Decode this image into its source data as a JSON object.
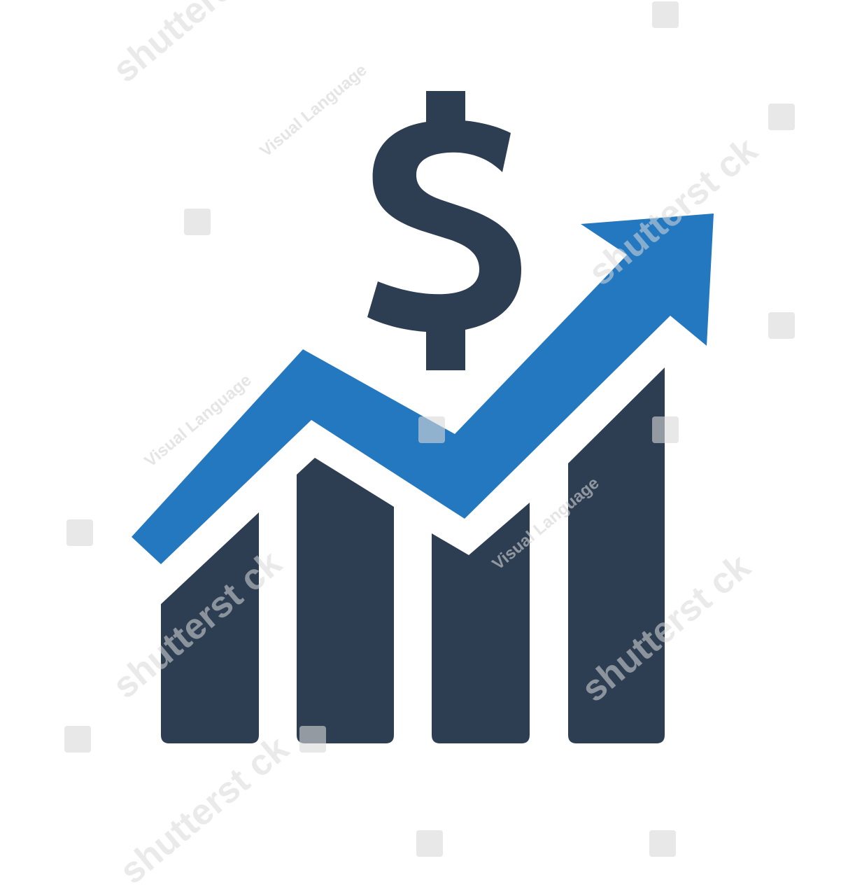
{
  "icon": {
    "name": "revenue-growth-chart-icon",
    "symbol": "$",
    "colors": {
      "dark": "#2e3e52",
      "accent": "#2378bf",
      "background": "#ffffff",
      "watermark": "#d9d9d9"
    },
    "bar_levels": [
      0.47,
      0.73,
      0.53,
      0.78
    ],
    "trend": "up"
  },
  "watermark": {
    "brand": "shutterst ck",
    "tagline": "Visual Language"
  }
}
